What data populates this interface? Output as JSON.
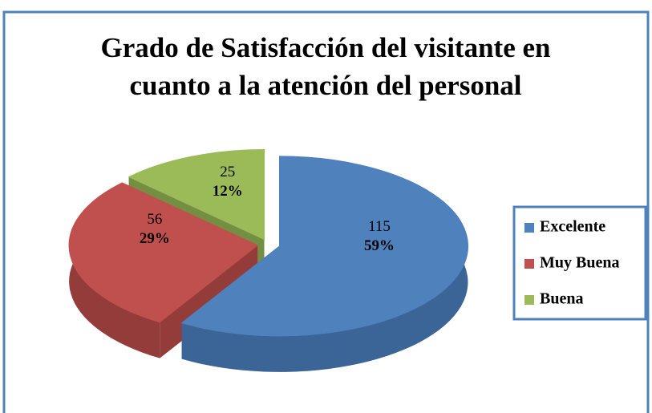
{
  "chart_data": {
    "type": "pie3d",
    "title": [
      "Grado de Satisfacción del visitante en",
      "cuanto a la atención del personal"
    ],
    "categories": [
      "Excelente",
      "Muy Buena",
      "Buena"
    ],
    "values": [
      115,
      56,
      25
    ],
    "percent_labels": [
      "59%",
      "29%",
      "12%"
    ],
    "colors": [
      "#4f81bd",
      "#c0504d",
      "#9bbb59"
    ],
    "side_colors": [
      "#3b6597",
      "#943c3a",
      "#748f41"
    ],
    "legend": "right"
  }
}
